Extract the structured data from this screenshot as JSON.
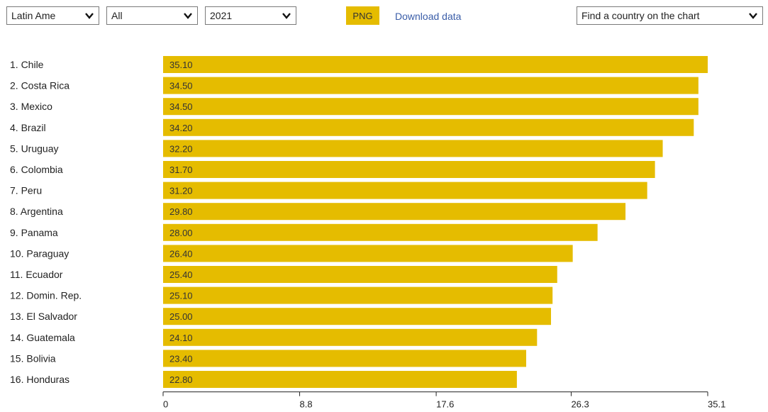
{
  "controls": {
    "region": "Latin Ame",
    "type": "All",
    "year": "2021",
    "png_label": "PNG",
    "download_label": "Download data",
    "find_label": "Find a country on the chart"
  },
  "colors": {
    "bar": "#e5bc00",
    "accent_link": "#3a5da8"
  },
  "chart_data": {
    "type": "bar",
    "orientation": "horizontal",
    "categories": [
      "1. Chile",
      "2. Costa Rica",
      "3. Mexico",
      "4. Brazil",
      "5. Uruguay",
      "6. Colombia",
      "7. Peru",
      "8. Argentina",
      "9. Panama",
      "10. Paraguay",
      "11. Ecuador",
      "12. Domin. Rep.",
      "13. El Salvador",
      "14. Guatemala",
      "15. Bolivia",
      "16. Honduras"
    ],
    "values": [
      35.1,
      34.5,
      34.5,
      34.2,
      32.2,
      31.7,
      31.2,
      29.8,
      28.0,
      26.4,
      25.4,
      25.1,
      25.0,
      24.1,
      23.4,
      22.8
    ],
    "value_labels": [
      "35.10",
      "34.50",
      "34.50",
      "34.20",
      "32.20",
      "31.70",
      "31.20",
      "29.80",
      "28.00",
      "26.40",
      "25.40",
      "25.10",
      "25.00",
      "24.10",
      "23.40",
      "22.80"
    ],
    "xticks": [
      0,
      8.8,
      17.6,
      26.3,
      35.1
    ],
    "xtick_labels": [
      "0",
      "8.8",
      "17.6",
      "26.3",
      "35.1"
    ],
    "xlim": [
      0,
      35.1
    ],
    "grid": false,
    "title": "",
    "xlabel": "",
    "ylabel": ""
  }
}
